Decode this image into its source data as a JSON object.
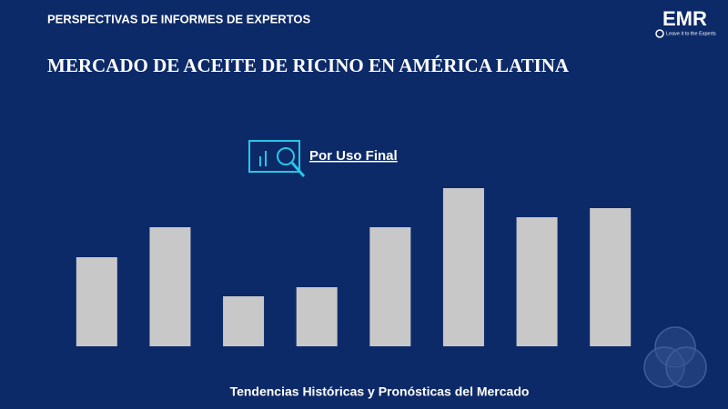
{
  "header": "PERSPECTIVAS DE INFORMES DE EXPERTOS",
  "logo": {
    "name": "EMR",
    "tagline": "Leave it to the Experts"
  },
  "chart_data": {
    "type": "bar",
    "title": "MERCADO DE ACEITE DE RICINO EN AMÉRICA LATINA",
    "subtitle": "Por Uso Final",
    "caption": "Tendencias Históricas y Pronósticas del Mercado",
    "values": [
      98,
      131,
      55,
      65,
      131,
      174,
      142,
      152
    ],
    "color": "#c8c8c8",
    "ylim": [
      0,
      180
    ]
  }
}
